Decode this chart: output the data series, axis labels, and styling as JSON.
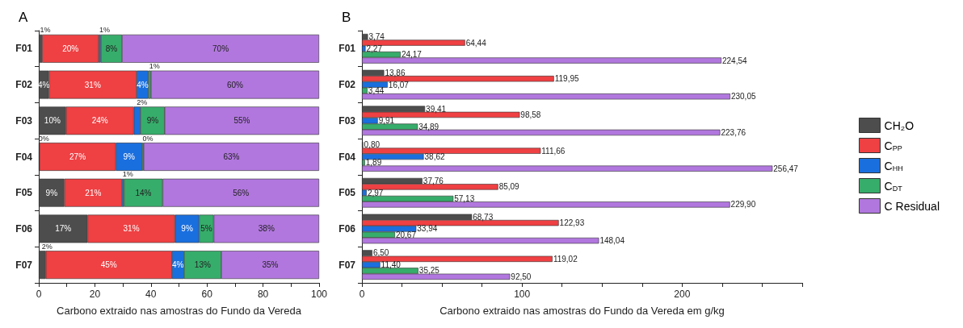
{
  "chart_data": [
    {
      "type": "bar",
      "title": "A",
      "orientation": "horizontal",
      "stacked": true,
      "xlabel": "Carbono extraido nas amostras do Fundo da Vereda",
      "categories": [
        "F01",
        "F02",
        "F03",
        "F04",
        "F05",
        "F06",
        "F07"
      ],
      "xlim": [
        0,
        100
      ],
      "xticks": [
        0,
        {
          "value": 10,
          "label": null
        },
        20,
        {
          "value": 30,
          "label": null
        },
        40,
        {
          "value": 50,
          "label": null
        },
        60,
        {
          "value": 70,
          "label": null
        },
        80,
        {
          "value": 90,
          "label": null
        },
        100
      ],
      "grid": false,
      "legend": false,
      "series": [
        {
          "color": "#4d4d4d",
          "values": [
            1.2,
            3.6,
            9.7,
            0.2,
            9.1,
            17.4,
            2.5
          ],
          "value_labels": [
            "1%",
            "4%",
            "10%",
            "0%",
            "9%",
            "17%",
            "2%"
          ]
        },
        {
          "color": "#ef4043",
          "values": [
            20.2,
            31.3,
            24.2,
            27.3,
            20.6,
            31.2,
            45.0
          ],
          "value_labels": [
            "20%",
            "31%",
            "24%",
            "27%",
            "21%",
            "31%",
            "45%"
          ]
        },
        {
          "color": "#1a6fdf",
          "values": [
            0.7,
            4.2,
            2.4,
            9.4,
            0.7,
            8.6,
            4.3
          ],
          "value_labels": [
            "1%",
            "4%",
            "2%",
            "9%",
            "1%",
            "9%",
            "4%"
          ]
        },
        {
          "color": "#37ad6b",
          "values": [
            7.6,
            0.9,
            8.6,
            0.5,
            13.8,
            5.2,
            13.3
          ],
          "value_labels": [
            "8%",
            "1%",
            "9%",
            "0%",
            "14%",
            "5%",
            "13%"
          ]
        },
        {
          "color": "#b177de",
          "values": [
            70.3,
            60.0,
            55.1,
            62.6,
            55.8,
            37.6,
            34.9
          ],
          "value_labels": [
            "70%",
            "60%",
            "55%",
            "63%",
            "56%",
            "38%",
            "35%"
          ]
        }
      ]
    },
    {
      "type": "bar",
      "title": "B",
      "orientation": "horizontal",
      "xlabel": "Carbono extraido nas amostras do Fundo da Vereda em g/kg",
      "categories": [
        "F01",
        "F02",
        "F03",
        "F04",
        "F05",
        "F06",
        "F07"
      ],
      "xlim": [
        0,
        275
      ],
      "xticks": [
        0,
        {
          "value": 25,
          "label": null
        },
        {
          "value": 50,
          "label": null
        },
        {
          "value": 75,
          "label": null
        },
        100,
        {
          "value": 125,
          "label": null
        },
        {
          "value": 150,
          "label": null
        },
        {
          "value": 175,
          "label": null
        },
        200,
        {
          "value": 225,
          "label": null
        },
        {
          "value": 250,
          "label": null
        },
        {
          "value": 275,
          "label": null
        }
      ],
      "grid": false,
      "legend": "right",
      "series": [
        {
          "name": "CH₂O",
          "color": "#4d4d4d",
          "values": [
            3.74,
            13.86,
            39.41,
            0.8,
            37.76,
            68.73,
            6.5
          ],
          "value_labels": [
            "3,74",
            "13,86",
            "39,41",
            "0,80",
            "37,76",
            "68,73",
            "6,50"
          ]
        },
        {
          "name": "C$_{PP}$",
          "color": "#ef4043",
          "values": [
            64.44,
            119.95,
            98.58,
            111.66,
            85.09,
            122.93,
            119.02
          ],
          "value_labels": [
            "64,44",
            "119,95",
            "98,58",
            "111,66",
            "85,09",
            "122,93",
            "119,02"
          ]
        },
        {
          "name": "C$_{HH}$",
          "color": "#1a6fdf",
          "values": [
            2.27,
            16.07,
            9.91,
            38.62,
            2.97,
            33.94,
            11.4
          ],
          "value_labels": [
            "2,27",
            "16,07",
            "9,91",
            "38,62",
            "2,97",
            "33,94",
            "11,40"
          ]
        },
        {
          "name": "C$_{DT}$",
          "color": "#37ad6b",
          "values": [
            24.17,
            3.44,
            34.89,
            1.89,
            57.13,
            20.67,
            35.25
          ],
          "value_labels": [
            "24,17",
            "3,44",
            "34,89",
            "1,89",
            "57,13",
            "20,67",
            "35,25"
          ]
        },
        {
          "name": "C Residual",
          "color": "#b177de",
          "values": [
            224.54,
            230.05,
            223.76,
            256.47,
            229.9,
            148.04,
            92.5
          ],
          "value_labels": [
            "224,54",
            "230,05",
            "223,76",
            "256,47",
            "229,90",
            "148,04",
            "92,50"
          ]
        }
      ]
    }
  ]
}
